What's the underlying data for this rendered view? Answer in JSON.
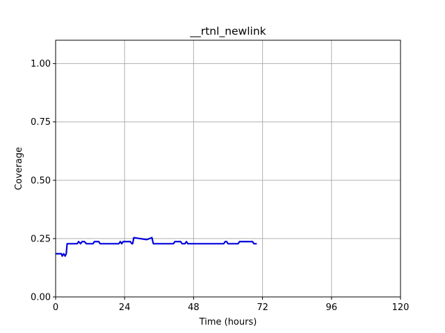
{
  "chart_data": {
    "type": "line",
    "title": "__rtnl_newlink",
    "xlabel": "Time (hours)",
    "ylabel": "Coverage",
    "xlim": [
      0,
      120
    ],
    "ylim": [
      0,
      1.1
    ],
    "xticks": [
      0,
      24,
      48,
      72,
      96,
      120
    ],
    "xtick_labels": [
      "0",
      "24",
      "48",
      "72",
      "96",
      "120"
    ],
    "yticks": [
      0,
      0.25,
      0.5,
      0.75,
      1.0
    ],
    "ytick_labels": [
      "0.00",
      "0.25",
      "0.50",
      "0.75",
      "1.00"
    ],
    "grid": true,
    "series": [
      {
        "color": "#0000dd",
        "x": [
          0,
          2.0,
          2.3,
          2.8,
          3.3,
          3.7,
          4.0,
          7.5,
          8.0,
          8.7,
          9.2,
          9.5,
          10.0,
          10.7,
          11.0,
          13.0,
          13.5,
          15.0,
          15.5,
          22.0,
          22.5,
          23.0,
          23.5,
          26.0,
          26.5,
          26.8,
          27.2,
          31.5,
          31.8,
          33.5,
          34.0,
          41.0,
          41.5,
          43.5,
          44.0,
          45.0,
          45.5,
          46.0,
          58.5,
          59.0,
          59.5,
          60.0,
          63.5,
          64.0,
          68.5,
          69.0,
          70.0
        ],
        "y": [
          0.185,
          0.185,
          0.175,
          0.185,
          0.175,
          0.185,
          0.228,
          0.228,
          0.237,
          0.228,
          0.237,
          0.237,
          0.237,
          0.228,
          0.228,
          0.228,
          0.237,
          0.237,
          0.228,
          0.228,
          0.237,
          0.228,
          0.237,
          0.237,
          0.228,
          0.228,
          0.254,
          0.246,
          0.246,
          0.254,
          0.228,
          0.228,
          0.237,
          0.237,
          0.228,
          0.228,
          0.237,
          0.228,
          0.228,
          0.237,
          0.237,
          0.228,
          0.228,
          0.237,
          0.237,
          0.228,
          0.228
        ]
      }
    ]
  }
}
